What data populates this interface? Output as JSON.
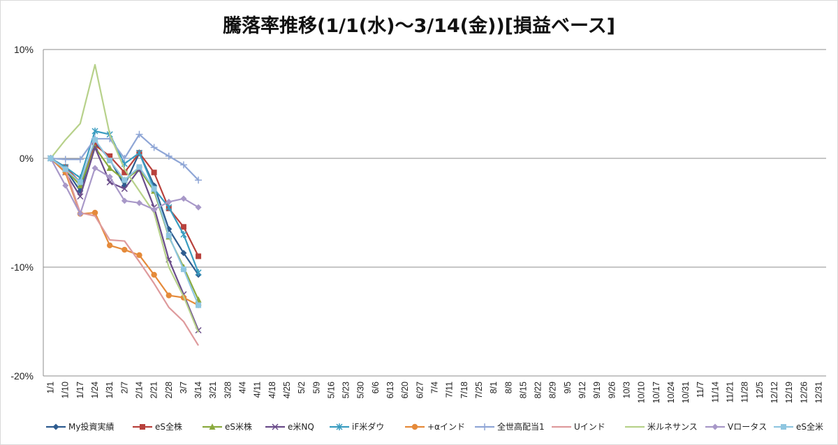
{
  "chart_data": {
    "type": "line",
    "title": "騰落率推移(1/1(水)～3/14(金))[損益ベース]",
    "xlabel": "",
    "ylabel": "",
    "ylim": [
      -0.2,
      0.1
    ],
    "yticks": [
      0.1,
      0.0,
      -0.1,
      -0.2
    ],
    "ytick_labels": [
      "10%",
      "0%",
      "-10%",
      "-20%"
    ],
    "grid": "horizontal major gridlines",
    "legend_position": "bottom",
    "categories": [
      "1/1",
      "1/10",
      "1/17",
      "1/24",
      "1/31",
      "2/7",
      "2/14",
      "2/21",
      "2/28",
      "3/7",
      "3/14",
      "3/21",
      "3/28",
      "4/4",
      "4/11",
      "4/18",
      "4/25",
      "5/2",
      "5/9",
      "5/16",
      "5/23",
      "5/30",
      "6/6",
      "6/13",
      "6/20",
      "6/27",
      "7/4",
      "7/11",
      "7/18",
      "7/25",
      "8/1",
      "8/8",
      "8/15",
      "8/22",
      "8/29",
      "9/5",
      "9/12",
      "9/19",
      "9/26",
      "10/3",
      "10/10",
      "10/17",
      "10/24",
      "10/31",
      "11/7",
      "11/14",
      "11/21",
      "11/28",
      "12/5",
      "12/12",
      "12/19",
      "12/26",
      "12/31"
    ],
    "series": [
      {
        "name": "My投資実績",
        "color": "#2E5C8F",
        "marker": "diamond",
        "x": [
          0,
          1,
          2,
          3,
          4,
          5,
          6,
          7,
          8,
          9,
          10
        ],
        "values": [
          0.0,
          -0.01,
          -0.03,
          0.015,
          -0.001,
          -0.025,
          0.005,
          -0.025,
          -0.065,
          -0.087,
          -0.107
        ]
      },
      {
        "name": "eS全株",
        "color": "#B8413C",
        "marker": "square",
        "x": [
          0,
          1,
          2,
          3,
          4,
          5,
          6,
          7,
          8,
          9,
          10
        ],
        "values": [
          0.0,
          -0.008,
          -0.022,
          0.012,
          0.002,
          -0.013,
          0.005,
          -0.013,
          -0.046,
          -0.063,
          -0.09
        ]
      },
      {
        "name": "eS米株",
        "color": "#8AAA3E",
        "marker": "triangle",
        "x": [
          0,
          1,
          2,
          3,
          4,
          5,
          6,
          7,
          8,
          9,
          10
        ],
        "values": [
          0.0,
          -0.01,
          -0.025,
          0.01,
          -0.009,
          -0.02,
          -0.01,
          -0.03,
          -0.072,
          -0.1,
          -0.13
        ]
      },
      {
        "name": "e米NQ",
        "color": "#6A4C8A",
        "marker": "x",
        "x": [
          0,
          1,
          2,
          3,
          4,
          5,
          6,
          7,
          8,
          9,
          10
        ],
        "values": [
          0.0,
          -0.013,
          -0.035,
          0.01,
          -0.022,
          -0.028,
          -0.01,
          -0.045,
          -0.093,
          -0.125,
          -0.158
        ]
      },
      {
        "name": "iF米ダウ",
        "color": "#3A9CC0",
        "marker": "star",
        "x": [
          0,
          1,
          2,
          3,
          4,
          5,
          6,
          7,
          8,
          9,
          10
        ],
        "values": [
          0.0,
          -0.008,
          -0.018,
          0.025,
          0.022,
          -0.005,
          0.005,
          -0.028,
          -0.045,
          -0.07,
          -0.105
        ]
      },
      {
        "name": "+αインド",
        "color": "#E58A3A",
        "marker": "circle",
        "x": [
          0,
          1,
          2,
          3,
          4,
          5,
          6,
          7,
          8,
          9,
          10
        ],
        "values": [
          0.0,
          -0.013,
          -0.051,
          -0.05,
          -0.08,
          -0.084,
          -0.089,
          -0.107,
          -0.126,
          -0.128,
          -0.135
        ]
      },
      {
        "name": "全世高配当1",
        "color": "#8FA6D6",
        "marker": "plus",
        "x": [
          0,
          1,
          2,
          3,
          4,
          5,
          6,
          7,
          8,
          9,
          10
        ],
        "values": [
          0.0,
          -0.001,
          -0.001,
          0.018,
          0.018,
          0.0,
          0.022,
          0.01,
          0.002,
          -0.006,
          -0.02
        ]
      },
      {
        "name": "Uインド",
        "color": "#DE9A9C",
        "marker": "none",
        "x": [
          0,
          1,
          2,
          3,
          4,
          5,
          6,
          7,
          8,
          9,
          10
        ],
        "values": [
          0.0,
          -0.01,
          -0.05,
          -0.053,
          -0.075,
          -0.076,
          -0.095,
          -0.115,
          -0.137,
          -0.15,
          -0.172
        ]
      },
      {
        "name": "米ルネサンス",
        "color": "#B7D18A",
        "marker": "none",
        "x": [
          0,
          1,
          2,
          3,
          4,
          5,
          6,
          7,
          8,
          9,
          10
        ],
        "values": [
          0.0,
          0.017,
          0.032,
          0.086,
          0.022,
          -0.01,
          -0.03,
          -0.05,
          -0.1,
          -0.127,
          -0.16
        ]
      },
      {
        "name": "Vロータス",
        "color": "#A898C8",
        "marker": "diamond",
        "x": [
          0,
          1,
          2,
          3,
          4,
          5,
          6,
          7,
          8,
          9,
          10
        ],
        "values": [
          0.0,
          -0.025,
          -0.051,
          -0.009,
          -0.017,
          -0.039,
          -0.041,
          -0.047,
          -0.04,
          -0.037,
          -0.045
        ]
      },
      {
        "name": "eS全米",
        "color": "#8FC6E0",
        "marker": "square",
        "x": [
          0,
          1,
          2,
          3,
          4,
          5,
          6,
          7,
          8,
          9,
          10
        ],
        "values": [
          0.0,
          -0.01,
          -0.022,
          0.017,
          -0.002,
          -0.02,
          -0.008,
          -0.028,
          -0.071,
          -0.102,
          -0.135
        ]
      }
    ]
  }
}
